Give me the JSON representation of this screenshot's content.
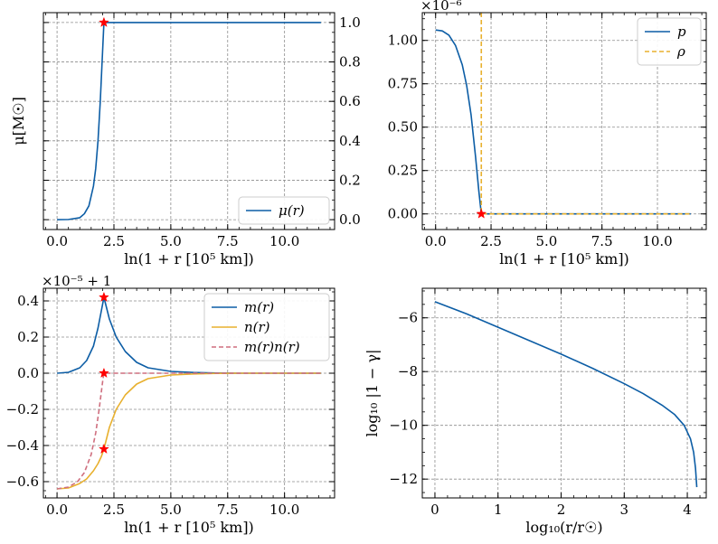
{
  "chart_data": [
    {
      "id": "mu",
      "type": "line",
      "xlabel": "ln(1 + r [10⁵ km])",
      "ylabel": "μ[M☉]",
      "xlim": [
        -0.6,
        12.2
      ],
      "ylim": [
        -0.05,
        1.05
      ],
      "xticks": [
        0.0,
        2.5,
        5.0,
        7.5,
        10.0
      ],
      "xtick_labels": [
        "0.0",
        "2.5",
        "5.0",
        "7.5",
        "10.0"
      ],
      "yticks": [
        0.0,
        0.2,
        0.4,
        0.6,
        0.8,
        1.0
      ],
      "ytick_labels": [
        "0.0",
        "0.2",
        "0.4",
        "0.6",
        "0.8",
        "1.0"
      ],
      "yaxis_side": "right",
      "offset_text": "",
      "grid": true,
      "legend": "bottom-right",
      "series": [
        {
          "name": "μ(r)",
          "color": "#0c5da5",
          "dash": "solid",
          "x": [
            0.0,
            0.5,
            1.0,
            1.2,
            1.4,
            1.6,
            1.7,
            1.8,
            1.9,
            2.0,
            2.06,
            2.1,
            4.0,
            8.0,
            11.6
          ],
          "y": [
            0.0,
            0.001,
            0.01,
            0.03,
            0.07,
            0.17,
            0.26,
            0.4,
            0.6,
            0.85,
            1.0,
            1.0,
            1.0,
            1.0,
            1.0
          ]
        }
      ],
      "markers": [
        {
          "x": 2.06,
          "y": 1.0
        }
      ]
    },
    {
      "id": "p_rho",
      "type": "line",
      "xlabel": "ln(1 + r [10⁵ km])",
      "ylabel": "",
      "xlim": [
        -0.6,
        12.2
      ],
      "ylim": [
        -9e-08,
        1.16e-06
      ],
      "xticks": [
        0.0,
        2.5,
        5.0,
        7.5,
        10.0
      ],
      "xtick_labels": [
        "0.0",
        "2.5",
        "5.0",
        "7.5",
        "10.0"
      ],
      "yticks": [
        0,
        2.5e-07,
        5e-07,
        7.5e-07,
        1e-06
      ],
      "ytick_labels": [
        "0.00",
        "0.25",
        "0.50",
        "0.75",
        "1.00"
      ],
      "yaxis_side": "left",
      "offset_text": "×10⁻⁶",
      "grid": true,
      "legend": "top-right",
      "series": [
        {
          "name": "p",
          "color": "#0c5da5",
          "dash": "solid",
          "x": [
            0.0,
            0.3,
            0.6,
            0.9,
            1.2,
            1.4,
            1.6,
            1.8,
            1.95,
            2.06,
            11.5
          ],
          "y": [
            1.06e-06,
            1.055e-06,
            1.03e-06,
            9.7e-07,
            8.6e-07,
            7.4e-07,
            5.7e-07,
            3.3e-07,
            1.3e-07,
            0.0,
            0.0
          ]
        },
        {
          "name": "ρ",
          "color": "#e8b02e",
          "dash": "dashed",
          "x": [
            2.06,
            2.06,
            11.5
          ],
          "y": [
            1.16e-06,
            0.0,
            0.0
          ]
        }
      ],
      "markers": [
        {
          "x": 2.06,
          "y": 0.0
        }
      ]
    },
    {
      "id": "m_n",
      "type": "line",
      "xlabel": "ln(1 + r [10⁵ km])",
      "ylabel": "",
      "xlim": [
        -0.6,
        12.2
      ],
      "ylim": [
        -0.69,
        0.47
      ],
      "xticks": [
        0.0,
        2.5,
        5.0,
        7.5,
        10.0
      ],
      "xtick_labels": [
        "0.0",
        "2.5",
        "5.0",
        "7.5",
        "10.0"
      ],
      "yticks": [
        -0.6,
        -0.4,
        -0.2,
        0.0,
        0.2,
        0.4
      ],
      "ytick_labels": [
        "−0.6",
        "−0.4",
        "−0.2",
        "0.0",
        "0.2",
        "0.4"
      ],
      "yaxis_side": "left",
      "offset_text": "×10⁻⁵ + 1",
      "grid": true,
      "legend": "top-right",
      "series": [
        {
          "name": "m(r)",
          "color": "#0c5da5",
          "dash": "solid",
          "x": [
            0.0,
            0.5,
            1.0,
            1.3,
            1.6,
            1.8,
            2.0,
            2.06,
            2.3,
            2.6,
            3.0,
            3.5,
            4.0,
            5.0,
            6.0,
            7.0,
            8.0,
            11.6
          ],
          "y": [
            0.0,
            0.005,
            0.03,
            0.07,
            0.15,
            0.25,
            0.38,
            0.42,
            0.3,
            0.2,
            0.12,
            0.06,
            0.03,
            0.01,
            0.004,
            0.001,
            0.0,
            0.0
          ]
        },
        {
          "name": "n(r)",
          "color": "#e8b02e",
          "dash": "solid",
          "x": [
            0.0,
            0.5,
            1.0,
            1.3,
            1.6,
            1.8,
            1.95,
            2.06,
            2.3,
            2.6,
            3.0,
            3.5,
            4.0,
            5.0,
            6.0,
            7.0,
            8.0,
            11.6
          ],
          "y": [
            -0.64,
            -0.635,
            -0.61,
            -0.585,
            -0.54,
            -0.5,
            -0.46,
            -0.42,
            -0.3,
            -0.2,
            -0.12,
            -0.06,
            -0.03,
            -0.01,
            -0.004,
            -0.001,
            0.0,
            0.0
          ]
        },
        {
          "name": "m(r)n(r)",
          "color": "#cf6f7f",
          "dash": "dashed",
          "x": [
            0.0,
            0.5,
            0.9,
            1.2,
            1.5,
            1.7,
            1.85,
            1.95,
            2.02,
            2.06,
            4.0,
            11.6
          ],
          "y": [
            -0.64,
            -0.63,
            -0.6,
            -0.55,
            -0.45,
            -0.33,
            -0.2,
            -0.1,
            -0.03,
            0.0,
            0.0,
            0.0
          ]
        }
      ],
      "markers": [
        {
          "x": 2.06,
          "y": 0.42
        },
        {
          "x": 2.06,
          "y": 0.0
        },
        {
          "x": 2.06,
          "y": -0.42
        }
      ]
    },
    {
      "id": "gamma",
      "type": "line",
      "xlabel": "log₁₀(r/r☉)",
      "ylabel": "log₁₀ |1 − γ|",
      "xlim": [
        -0.2,
        4.3
      ],
      "ylim": [
        -12.7,
        -4.9
      ],
      "xticks": [
        0,
        1,
        2,
        3,
        4
      ],
      "xtick_labels": [
        "0",
        "1",
        "2",
        "3",
        "4"
      ],
      "yticks": [
        -12,
        -10,
        -8,
        -6
      ],
      "ytick_labels": [
        "−12",
        "−10",
        "−8",
        "−6"
      ],
      "yaxis_side": "left",
      "offset_text": "",
      "grid": true,
      "legend": "none",
      "series": [
        {
          "name": "",
          "color": "#0c5da5",
          "dash": "solid",
          "x": [
            0.0,
            0.5,
            1.0,
            1.5,
            2.0,
            2.5,
            3.0,
            3.3,
            3.6,
            3.8,
            3.95,
            4.05,
            4.1,
            4.13,
            4.15
          ],
          "y": [
            -5.4,
            -5.85,
            -6.35,
            -6.85,
            -7.35,
            -7.88,
            -8.45,
            -8.82,
            -9.25,
            -9.6,
            -10.0,
            -10.5,
            -11.0,
            -11.6,
            -12.3
          ]
        }
      ],
      "markers": []
    }
  ]
}
